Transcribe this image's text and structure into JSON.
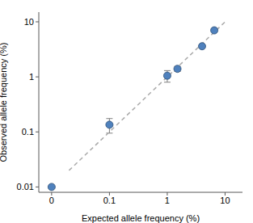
{
  "chart_data": {
    "type": "scatter",
    "x_label": "Expected allele frequency (%)",
    "y_label": "Observed allele frequency (%)",
    "log": true,
    "grid": false,
    "xlim": [
      0.006,
      20
    ],
    "ylim": [
      0.008,
      15
    ],
    "xticks": [
      {
        "value": 0.01,
        "label": "0"
      },
      0.1,
      1,
      10
    ],
    "yticks": [
      0.01,
      0.1,
      1,
      10
    ],
    "series": [
      {
        "type": "line",
        "color": "#aaaaaa",
        "line_style": "dashed",
        "x": [
          0.02,
          10
        ],
        "values": [
          0.02,
          10
        ]
      },
      {
        "type": "scatter",
        "color": "#4f81bd",
        "marker": "circle",
        "x": [
          0.01,
          0.1,
          1,
          1.5,
          4,
          6.5
        ],
        "values": [
          0.01,
          0.135,
          1.05,
          1.4,
          3.6,
          7
        ],
        "error": [
          0,
          0.04,
          0.25,
          0.15,
          0.2,
          0.3
        ]
      }
    ]
  }
}
